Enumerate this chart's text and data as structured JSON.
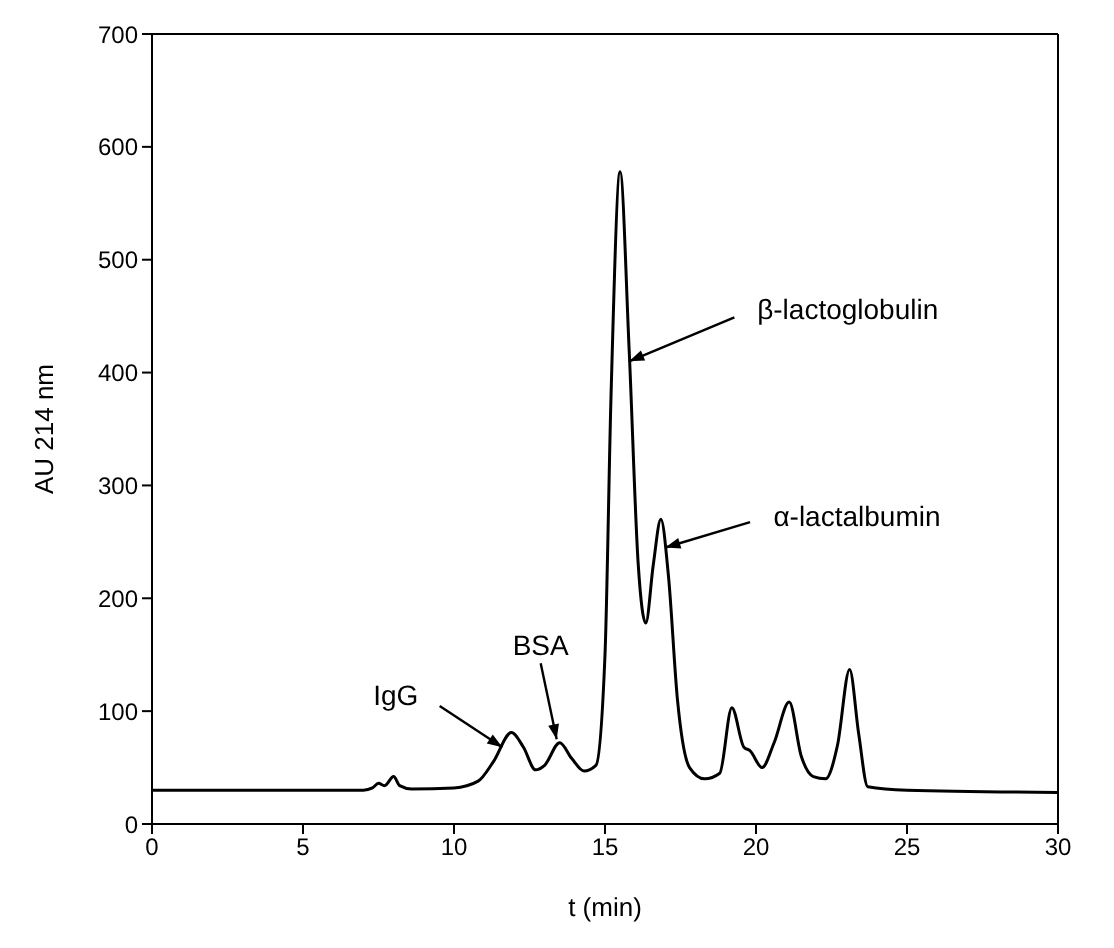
{
  "chart_data": {
    "type": "line",
    "xlabel": "t (min)",
    "ylabel": "AU 214 nm",
    "x": [
      0,
      7,
      7.3,
      7.5,
      7.7,
      8.0,
      8.2,
      8.6,
      10,
      10.8,
      11.3,
      11.9,
      12.3,
      12.7,
      13.0,
      13.5,
      13.9,
      14.3,
      14.7,
      15.0,
      15.2,
      15.5,
      15.8,
      16.1,
      16.35,
      16.6,
      16.85,
      17.1,
      17.4,
      17.8,
      18.3,
      18.8,
      19.2,
      19.6,
      19.8,
      20.2,
      20.6,
      21.1,
      21.5,
      21.9,
      22.3,
      22.7,
      23.1,
      23.4,
      23.7,
      25,
      30
    ],
    "series": [
      {
        "color": "#000000",
        "values": [
          30,
          30,
          32,
          36,
          34,
          42,
          34,
          31,
          32,
          38,
          55,
          81,
          68,
          48,
          52,
          72,
          58,
          47,
          52,
          150,
          380,
          578,
          420,
          230,
          178,
          230,
          270,
          220,
          110,
          50,
          40,
          45,
          103,
          68,
          65,
          50,
          72,
          108,
          60,
          42,
          40,
          70,
          137,
          80,
          33,
          30,
          28
        ]
      }
    ],
    "xlim": [
      0,
      30
    ],
    "xticks": [
      0,
      5,
      10,
      15,
      20,
      25,
      30
    ],
    "ylim": [
      0,
      700
    ],
    "yticks": [
      0,
      100,
      200,
      300,
      400,
      500,
      600,
      700
    ],
    "marker": "none",
    "line_style": "solid",
    "annotations": [
      {
        "text": "IgG",
        "x": 11.6,
        "y": 68
      },
      {
        "text": "BSA",
        "x": 13.4,
        "y": 75
      },
      {
        "text": "β-lactoglobulin",
        "x": 15.8,
        "y": 410
      },
      {
        "text": "α-lactalbumin",
        "x": 17.0,
        "y": 245
      }
    ]
  }
}
